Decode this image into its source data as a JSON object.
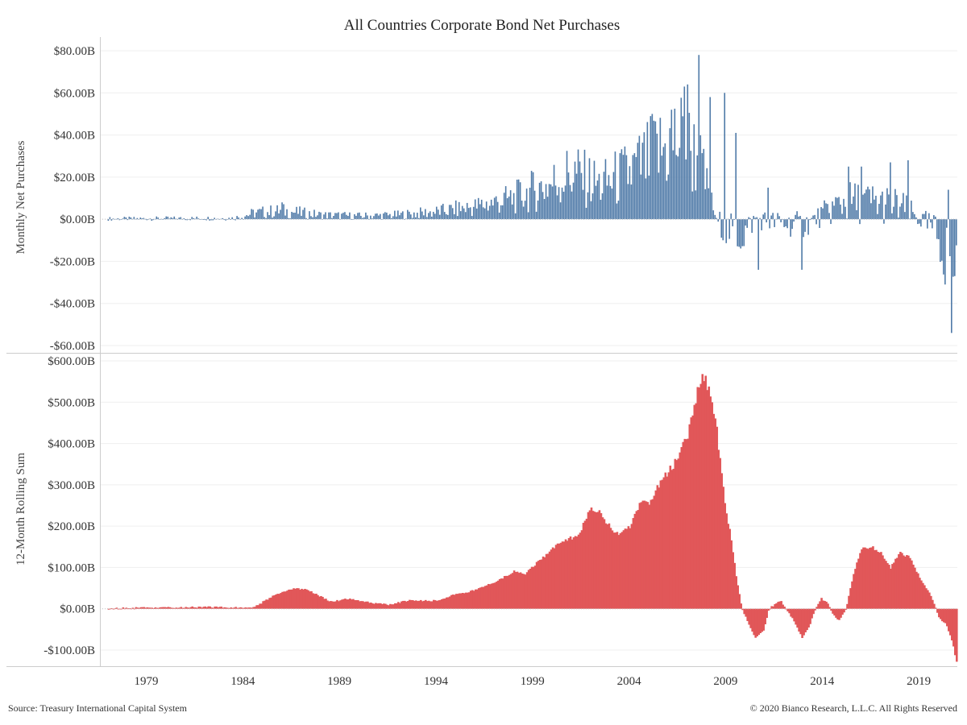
{
  "chart_data": {
    "title": "All Countries Corporate Bond Net Purchases",
    "source": "Source: Treasury International Capital System",
    "copyright": "© 2020 Bianco Research, L.L.C. All Rights Reserved",
    "x_axis": {
      "type": "time",
      "range": [
        1976.6,
        2021.0
      ],
      "tick_labels": [
        "1979",
        "1984",
        "1989",
        "1994",
        "1999",
        "2004",
        "2009",
        "2014",
        "2019"
      ],
      "tick_values": [
        1979,
        1984,
        1989,
        1994,
        1999,
        2004,
        2009,
        2014,
        2019
      ]
    },
    "panels": [
      {
        "type": "bar",
        "series_color": "#4e79a7",
        "ylabel": "Monthly Net Purchases",
        "ylim": [
          -60,
          80
        ],
        "y_ticks": [
          80,
          60,
          40,
          20,
          0,
          -20,
          -40,
          -60
        ],
        "y_tick_labels": [
          "$80.00B",
          "$60.00B",
          "$40.00B",
          "$20.00B",
          "$0.00B",
          "-$20.00B",
          "-$40.00B",
          "-$60.00B"
        ],
        "grid": true,
        "units": "billions USD",
        "anchors": [
          [
            1977.0,
            0.2
          ],
          [
            1983.5,
            0.5
          ],
          [
            1984.6,
            3
          ],
          [
            1986.0,
            4
          ],
          [
            1988.0,
            2
          ],
          [
            1990.0,
            1.5
          ],
          [
            1992.0,
            2
          ],
          [
            1994.0,
            3.5
          ],
          [
            1996.0,
            6
          ],
          [
            1998.0,
            10
          ],
          [
            2000.0,
            17
          ],
          [
            2001.0,
            22
          ],
          [
            2002.5,
            16
          ],
          [
            2004.0,
            22
          ],
          [
            2005.0,
            28
          ],
          [
            2006.5,
            38
          ],
          [
            2007.5,
            30
          ],
          [
            2008.0,
            15
          ],
          [
            2008.5,
            0
          ],
          [
            2009.0,
            -5
          ],
          [
            2009.8,
            -8
          ],
          [
            2010.5,
            0
          ],
          [
            2012.0,
            -2
          ],
          [
            2013.0,
            -3
          ],
          [
            2014.0,
            2
          ],
          [
            2015.0,
            8
          ],
          [
            2016.5,
            8
          ],
          [
            2018.0,
            6
          ],
          [
            2019.0,
            0
          ],
          [
            2019.8,
            -5
          ],
          [
            2020.3,
            -15
          ],
          [
            2020.8,
            -20
          ]
        ],
        "spikes": [
          [
            1986.0,
            8
          ],
          [
            2001.7,
            33
          ],
          [
            2005.2,
            50
          ],
          [
            2006.2,
            52
          ],
          [
            2006.8,
            63
          ],
          [
            2007.0,
            64
          ],
          [
            2007.6,
            78
          ],
          [
            2008.2,
            58
          ],
          [
            2008.9,
            60
          ],
          [
            2009.5,
            41
          ],
          [
            2010.7,
            -24
          ],
          [
            2011.2,
            15
          ],
          [
            2012.9,
            -24
          ],
          [
            2015.3,
            25
          ],
          [
            2016.0,
            25
          ],
          [
            2017.5,
            27
          ],
          [
            2018.4,
            28
          ],
          [
            2020.3,
            -31
          ],
          [
            2020.5,
            14
          ],
          [
            2020.65,
            -54
          ],
          [
            2020.85,
            -27
          ]
        ]
      },
      {
        "type": "area",
        "series_color": "#e15759",
        "ylabel": "12-Month Rolling Sum",
        "ylim": [
          -125,
          600
        ],
        "y_ticks": [
          600,
          500,
          400,
          300,
          200,
          100,
          0,
          -100
        ],
        "y_tick_labels": [
          "$600.00B",
          "$500.00B",
          "$400.00B",
          "$300.00B",
          "$200.00B",
          "$100.00B",
          "$0.00B",
          "-$100.00B"
        ],
        "grid": true,
        "units": "billions USD",
        "points": [
          [
            1977.0,
            0
          ],
          [
            1978.0,
            2
          ],
          [
            1981.0,
            3
          ],
          [
            1982.0,
            5
          ],
          [
            1983.0,
            3
          ],
          [
            1984.5,
            3
          ],
          [
            1985.5,
            30
          ],
          [
            1986.5,
            48
          ],
          [
            1987.2,
            48
          ],
          [
            1988.5,
            17
          ],
          [
            1989.5,
            25
          ],
          [
            1990.5,
            15
          ],
          [
            1991.5,
            10
          ],
          [
            1992.5,
            20
          ],
          [
            1994.0,
            20
          ],
          [
            1995.0,
            35
          ],
          [
            1996.0,
            45
          ],
          [
            1997.0,
            65
          ],
          [
            1998.0,
            90
          ],
          [
            1998.6,
            85
          ],
          [
            1999.5,
            125
          ],
          [
            2000.5,
            165
          ],
          [
            2001.3,
            175
          ],
          [
            2002.0,
            245
          ],
          [
            2002.5,
            230
          ],
          [
            2003.0,
            195
          ],
          [
            2003.5,
            180
          ],
          [
            2004.0,
            200
          ],
          [
            2004.5,
            255
          ],
          [
            2005.0,
            255
          ],
          [
            2005.5,
            300
          ],
          [
            2006.5,
            365
          ],
          [
            2007.0,
            420
          ],
          [
            2007.3,
            490
          ],
          [
            2007.8,
            570
          ],
          [
            2008.2,
            510
          ],
          [
            2008.5,
            430
          ],
          [
            2008.9,
            260
          ],
          [
            2009.2,
            180
          ],
          [
            2009.5,
            80
          ],
          [
            2009.8,
            0
          ],
          [
            2010.2,
            -40
          ],
          [
            2010.5,
            -70
          ],
          [
            2010.9,
            -55
          ],
          [
            2011.2,
            0
          ],
          [
            2011.5,
            10
          ],
          [
            2011.8,
            20
          ],
          [
            2012.0,
            5
          ],
          [
            2012.5,
            -30
          ],
          [
            2012.9,
            -70
          ],
          [
            2013.3,
            -40
          ],
          [
            2013.6,
            0
          ],
          [
            2013.9,
            25
          ],
          [
            2014.2,
            15
          ],
          [
            2014.5,
            -10
          ],
          [
            2014.8,
            -30
          ],
          [
            2015.2,
            0
          ],
          [
            2015.6,
            90
          ],
          [
            2016.0,
            145
          ],
          [
            2016.5,
            150
          ],
          [
            2017.0,
            135
          ],
          [
            2017.5,
            100
          ],
          [
            2018.0,
            135
          ],
          [
            2018.5,
            125
          ],
          [
            2019.0,
            75
          ],
          [
            2019.5,
            40
          ],
          [
            2019.7,
            20
          ],
          [
            2020.0,
            -20
          ],
          [
            2020.4,
            -40
          ],
          [
            2020.7,
            -80
          ],
          [
            2020.9,
            -125
          ]
        ]
      }
    ]
  }
}
